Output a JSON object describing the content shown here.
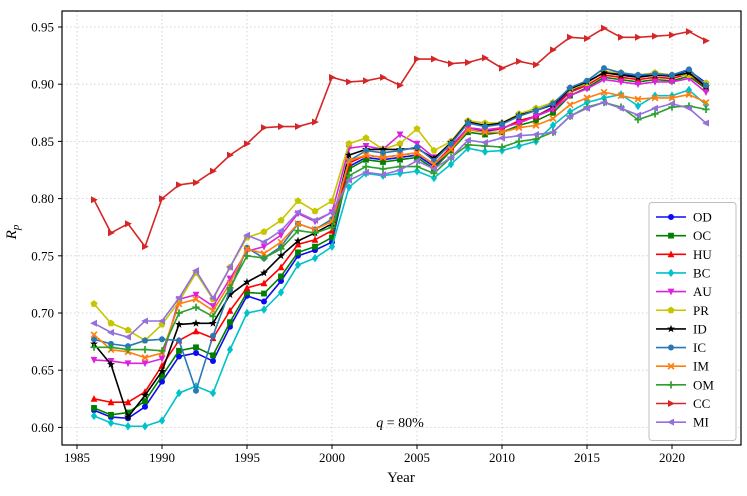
{
  "figure": {
    "ylabel_main": "R",
    "ylabel_sub": "p",
    "annotation_q": "q",
    "annotation_eq": " = 80%",
    "background": "#ffffff",
    "spine_color": "#000000",
    "grid_color": "#c9c9c9",
    "legend_border_color": "#bfbfbf"
  },
  "chart_data": {
    "type": "line",
    "title": "",
    "xlabel": "Year",
    "ylabel": "R_p",
    "annotation": "q = 80%",
    "grid": true,
    "legend_position": "lower right",
    "xlim": [
      1984.1,
      2024.1
    ],
    "ylim": [
      0.585,
      0.963
    ],
    "xticks": [
      1985,
      1990,
      1995,
      2000,
      2005,
      2010,
      2015,
      2020
    ],
    "ytick_labels": [
      "0.60",
      "0.65",
      "0.70",
      "0.75",
      "0.80",
      "0.85",
      "0.90",
      "0.95"
    ],
    "ytick_values": [
      0.6,
      0.65,
      0.7,
      0.75,
      0.8,
      0.85,
      0.9,
      0.95
    ],
    "x": [
      1986,
      1987,
      1988,
      1989,
      1990,
      1991,
      1992,
      1993,
      1994,
      1995,
      1996,
      1997,
      1998,
      1999,
      2000,
      2001,
      2002,
      2003,
      2004,
      2005,
      2006,
      2007,
      2008,
      2009,
      2010,
      2011,
      2012,
      2013,
      2014,
      2015,
      2016,
      2017,
      2018,
      2019,
      2020,
      2021,
      2022
    ],
    "series": [
      {
        "name": "OD",
        "color": "#0b0bf0",
        "marker": "circle",
        "values": [
          0.615,
          0.609,
          0.608,
          0.618,
          0.64,
          0.662,
          0.665,
          0.658,
          0.688,
          0.715,
          0.71,
          0.728,
          0.75,
          0.755,
          0.762,
          0.828,
          0.836,
          0.834,
          0.836,
          0.838,
          0.828,
          0.844,
          0.862,
          0.859,
          0.861,
          0.868,
          0.872,
          0.88,
          0.894,
          0.901,
          0.911,
          0.909,
          0.907,
          0.909,
          0.908,
          0.912,
          0.901
        ]
      },
      {
        "name": "OC",
        "color": "#008000",
        "marker": "square",
        "values": [
          0.617,
          0.611,
          0.613,
          0.623,
          0.645,
          0.667,
          0.67,
          0.663,
          0.692,
          0.718,
          0.717,
          0.732,
          0.753,
          0.758,
          0.766,
          0.826,
          0.834,
          0.832,
          0.834,
          0.836,
          0.826,
          0.842,
          0.858,
          0.856,
          0.858,
          0.864,
          0.868,
          0.875,
          0.89,
          0.897,
          0.906,
          0.904,
          0.902,
          0.904,
          0.903,
          0.907,
          0.896
        ]
      },
      {
        "name": "HU",
        "color": "#ff0000",
        "marker": "triangle-up",
        "values": [
          0.625,
          0.622,
          0.622,
          0.631,
          0.654,
          0.676,
          0.684,
          0.678,
          0.702,
          0.722,
          0.726,
          0.74,
          0.76,
          0.764,
          0.772,
          0.831,
          0.838,
          0.836,
          0.838,
          0.84,
          0.83,
          0.845,
          0.862,
          0.86,
          0.861,
          0.868,
          0.872,
          0.879,
          0.893,
          0.899,
          0.908,
          0.906,
          0.904,
          0.906,
          0.905,
          0.909,
          0.897
        ]
      },
      {
        "name": "BC",
        "color": "#00c2cb",
        "marker": "diamond",
        "values": [
          0.61,
          0.604,
          0.601,
          0.601,
          0.606,
          0.63,
          0.636,
          0.63,
          0.668,
          0.7,
          0.703,
          0.718,
          0.742,
          0.748,
          0.758,
          0.81,
          0.822,
          0.82,
          0.822,
          0.824,
          0.818,
          0.83,
          0.844,
          0.841,
          0.842,
          0.846,
          0.85,
          0.864,
          0.876,
          0.884,
          0.888,
          0.891,
          0.881,
          0.89,
          0.89,
          0.895,
          0.882
        ]
      },
      {
        "name": "AU",
        "color": "#dd22dd",
        "marker": "triangle-down",
        "values": [
          0.659,
          0.658,
          0.656,
          0.656,
          0.66,
          0.712,
          0.716,
          0.706,
          0.73,
          0.754,
          0.758,
          0.768,
          0.787,
          0.78,
          0.788,
          0.844,
          0.846,
          0.843,
          0.856,
          0.848,
          0.836,
          0.846,
          0.862,
          0.86,
          0.862,
          0.866,
          0.872,
          0.878,
          0.89,
          0.896,
          0.904,
          0.902,
          0.9,
          0.902,
          0.902,
          0.905,
          0.893
        ]
      },
      {
        "name": "PR",
        "color": "#c6c600",
        "marker": "pentagon",
        "values": [
          0.708,
          0.691,
          0.685,
          0.676,
          0.69,
          0.71,
          0.735,
          0.712,
          0.74,
          0.766,
          0.771,
          0.781,
          0.798,
          0.789,
          0.798,
          0.848,
          0.853,
          0.843,
          0.848,
          0.861,
          0.842,
          0.85,
          0.868,
          0.866,
          0.866,
          0.874,
          0.879,
          0.884,
          0.895,
          0.901,
          0.911,
          0.91,
          0.908,
          0.91,
          0.908,
          0.908,
          0.901
        ]
      },
      {
        "name": "ID",
        "color": "#000000",
        "marker": "star",
        "values": [
          0.673,
          0.655,
          0.609,
          0.628,
          0.649,
          0.69,
          0.691,
          0.691,
          0.716,
          0.727,
          0.735,
          0.75,
          0.763,
          0.77,
          0.778,
          0.838,
          0.843,
          0.843,
          0.843,
          0.844,
          0.835,
          0.849,
          0.867,
          0.864,
          0.866,
          0.873,
          0.877,
          0.882,
          0.896,
          0.902,
          0.91,
          0.908,
          0.906,
          0.908,
          0.907,
          0.91,
          0.898
        ]
      },
      {
        "name": "IC",
        "color": "#2878b5",
        "marker": "circle",
        "values": [
          0.677,
          0.673,
          0.671,
          0.676,
          0.677,
          0.676,
          0.632,
          0.68,
          0.72,
          0.757,
          0.748,
          0.758,
          0.778,
          0.773,
          0.782,
          0.833,
          0.842,
          0.84,
          0.842,
          0.845,
          0.833,
          0.848,
          0.866,
          0.863,
          0.865,
          0.872,
          0.877,
          0.883,
          0.897,
          0.903,
          0.914,
          0.91,
          0.908,
          0.909,
          0.908,
          0.913,
          0.899
        ]
      },
      {
        "name": "IM",
        "color": "#ff7f0e",
        "marker": "x",
        "values": [
          0.681,
          0.668,
          0.666,
          0.661,
          0.665,
          0.708,
          0.712,
          0.702,
          0.726,
          0.756,
          0.752,
          0.762,
          0.778,
          0.773,
          0.78,
          0.833,
          0.838,
          0.836,
          0.838,
          0.84,
          0.83,
          0.843,
          0.86,
          0.858,
          0.858,
          0.862,
          0.864,
          0.87,
          0.882,
          0.888,
          0.893,
          0.89,
          0.887,
          0.888,
          0.888,
          0.891,
          0.884
        ]
      },
      {
        "name": "OM",
        "color": "#2ca02c",
        "marker": "plus",
        "values": [
          0.67,
          0.67,
          0.668,
          0.668,
          0.667,
          0.7,
          0.705,
          0.697,
          0.722,
          0.75,
          0.748,
          0.756,
          0.772,
          0.77,
          0.775,
          0.82,
          0.828,
          0.826,
          0.828,
          0.828,
          0.822,
          0.836,
          0.847,
          0.846,
          0.845,
          0.85,
          0.852,
          0.858,
          0.872,
          0.88,
          0.884,
          0.88,
          0.869,
          0.874,
          0.88,
          0.881,
          0.878
        ]
      },
      {
        "name": "CC",
        "color": "#d62728",
        "marker": "triangle-right",
        "values": [
          0.799,
          0.77,
          0.778,
          0.758,
          0.8,
          0.812,
          0.814,
          0.824,
          0.838,
          0.848,
          0.862,
          0.863,
          0.863,
          0.867,
          0.906,
          0.902,
          0.903,
          0.906,
          0.899,
          0.922,
          0.922,
          0.918,
          0.919,
          0.923,
          0.914,
          0.92,
          0.917,
          0.93,
          0.941,
          0.94,
          0.949,
          0.941,
          0.941,
          0.942,
          0.943,
          0.946,
          0.938
        ]
      },
      {
        "name": "MI",
        "color": "#9370db",
        "marker": "triangle-left",
        "values": [
          0.691,
          0.683,
          0.679,
          0.693,
          0.693,
          0.713,
          0.737,
          0.713,
          0.74,
          0.768,
          0.762,
          0.772,
          0.788,
          0.781,
          0.788,
          0.816,
          0.823,
          0.821,
          0.825,
          0.833,
          0.826,
          0.836,
          0.851,
          0.849,
          0.853,
          0.855,
          0.856,
          0.858,
          0.872,
          0.879,
          0.884,
          0.879,
          0.873,
          0.879,
          0.883,
          0.879,
          0.866
        ]
      }
    ]
  }
}
